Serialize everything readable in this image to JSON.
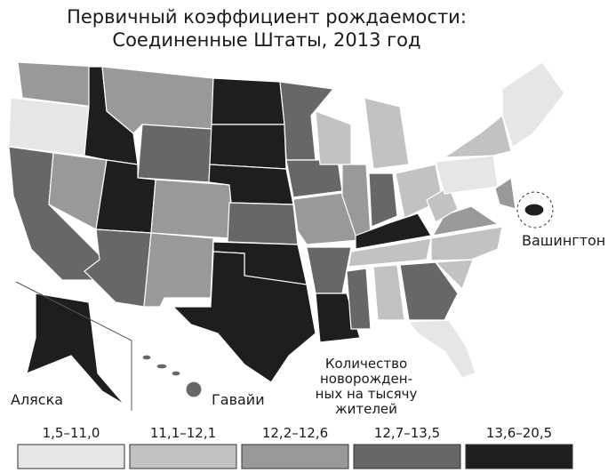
{
  "title": [
    "Первичный коэффициент рождаемости:",
    "Соединенные Штаты, 2013 год"
  ],
  "map_labels": {
    "alaska": "Аляска",
    "hawaii": "Гавайи",
    "washington": "Вашингтон"
  },
  "annotation": [
    "Количество",
    "новорожден-",
    "ных на тысячу",
    "жителей"
  ],
  "legend": [
    {
      "label": "1,5–11,0",
      "color": "#e6e6e6"
    },
    {
      "label": "11,1–12,1",
      "color": "#c2c2c2"
    },
    {
      "label": "12,2–12,6",
      "color": "#999999"
    },
    {
      "label": "12,7–13,5",
      "color": "#676767"
    },
    {
      "label": "13,6–20,5",
      "color": "#1f1d1e"
    }
  ]
}
